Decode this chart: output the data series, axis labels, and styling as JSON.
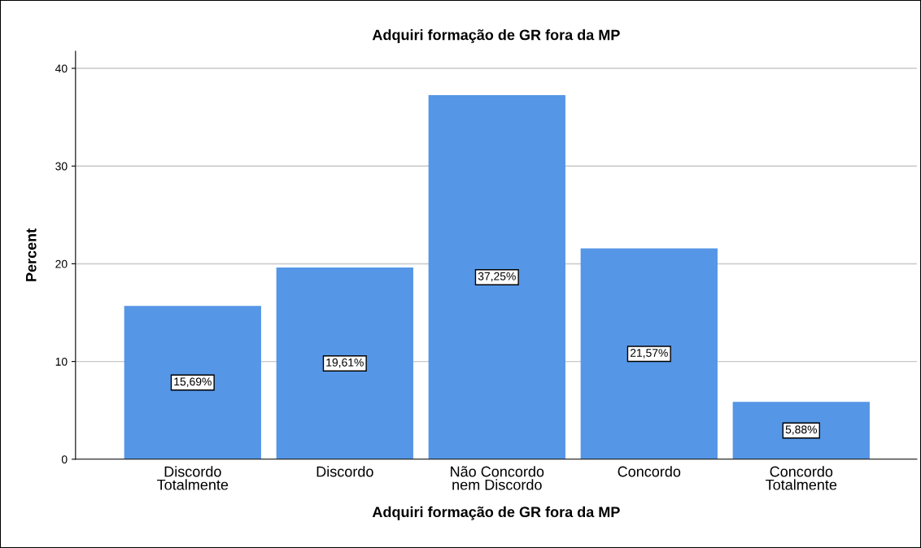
{
  "chart_data": {
    "type": "bar",
    "title": "Adquiri formação de GR fora da MP",
    "xlabel": "Adquiri formação de GR fora da MP",
    "ylabel": "Percent",
    "categories": [
      "Discordo\nTotalmente",
      "Discordo",
      "Não Concordo\nnem Discordo",
      "Concordo",
      "Concordo\nTotalmente"
    ],
    "values": [
      15.69,
      19.61,
      37.25,
      21.57,
      5.88
    ],
    "value_labels": [
      "15,69%",
      "19,61%",
      "37,25%",
      "21,57%",
      "5,88%"
    ],
    "color": "#5596e6",
    "ylim": [
      0,
      41.75
    ],
    "yticks": [
      0,
      10,
      20,
      30,
      40
    ],
    "grid": "y"
  }
}
